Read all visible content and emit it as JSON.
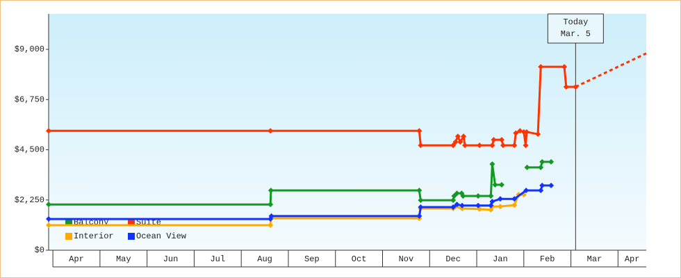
{
  "chart_data": {
    "type": "line",
    "step_markers": true,
    "legend": "lower left",
    "xlim": [
      -0.09,
      12.6
    ],
    "xticks": [
      {
        "value": 0,
        "label": "Apr"
      },
      {
        "value": 1,
        "label": "May"
      },
      {
        "value": 2,
        "label": "Jun"
      },
      {
        "value": 3,
        "label": "Jul"
      },
      {
        "value": 4,
        "label": "Aug"
      },
      {
        "value": 5,
        "label": "Sep"
      },
      {
        "value": 6,
        "label": "Oct"
      },
      {
        "value": 7,
        "label": "Nov"
      },
      {
        "value": 8,
        "label": "Dec"
      },
      {
        "value": 9,
        "label": "Jan"
      },
      {
        "value": 10,
        "label": "Feb"
      },
      {
        "value": 11,
        "label": "Mar"
      },
      {
        "value": 12,
        "label": "Apr"
      }
    ],
    "ylim": [
      0,
      10590
    ],
    "yticks": [
      {
        "value": 0,
        "label": "$0"
      },
      {
        "value": 2250,
        "label": "$2,250"
      },
      {
        "value": 4500,
        "label": "$4,500"
      },
      {
        "value": 6750,
        "label": "$6,750"
      },
      {
        "value": 9000,
        "label": "$9,000"
      }
    ],
    "annotation": {
      "lines": [
        "Today",
        "Mar. 5"
      ],
      "x": 11.1
    },
    "series": [
      {
        "name": "Balcony",
        "color": "#119922",
        "x": [
          -0.09,
          4.62,
          4.63,
          7.78,
          7.81,
          8.5,
          8.52,
          8.58,
          8.68,
          8.71,
          9.03,
          9.3,
          9.33,
          9.39,
          9.53,
          null,
          10.07,
          10.36,
          10.39,
          10.58
        ],
        "values": [
          2050,
          2050,
          2680,
          2680,
          2240,
          2240,
          2430,
          2550,
          2550,
          2430,
          2430,
          2430,
          3860,
          2930,
          2930,
          null,
          3710,
          3710,
          3960,
          3960
        ]
      },
      {
        "name": "Suite",
        "color": "#ff3300",
        "x": [
          -0.09,
          4.62,
          7.78,
          7.81,
          8.5,
          8.55,
          8.6,
          8.65,
          8.72,
          8.75,
          9.06,
          9.33,
          9.36,
          9.53,
          9.56,
          9.8,
          9.83,
          9.92,
          10.0,
          10.04,
          10.06,
          10.3,
          10.36,
          10.86,
          10.9,
          11.1
        ],
        "values": [
          5350,
          5350,
          5350,
          4700,
          4700,
          4850,
          5100,
          4850,
          5100,
          4700,
          4700,
          4700,
          4950,
          4950,
          4700,
          4700,
          5250,
          5350,
          5300,
          4700,
          5300,
          5200,
          8220,
          8220,
          7320,
          7320
        ],
        "forecast_x": [
          11.1,
          12.6
        ],
        "forecast_values": [
          7320,
          8820
        ]
      },
      {
        "name": "Interior",
        "color": "#ffaa00",
        "x": [
          -0.09,
          4.62,
          4.63,
          7.78,
          7.81,
          8.5,
          8.55,
          8.69,
          9.06,
          9.3,
          9.33,
          9.5,
          9.8,
          9.89,
          10.0
        ],
        "values": [
          1120,
          1120,
          1430,
          1430,
          1870,
          1870,
          1960,
          1870,
          1840,
          1810,
          1960,
          1960,
          2020,
          2490,
          2490
        ]
      },
      {
        "name": "Ocean View",
        "color": "#1133ff",
        "x": [
          -0.09,
          4.62,
          4.64,
          7.78,
          7.81,
          8.5,
          8.58,
          8.69,
          9.03,
          9.3,
          9.33,
          9.5,
          9.8,
          10.05,
          10.36,
          10.39,
          10.58
        ],
        "values": [
          1400,
          1400,
          1530,
          1530,
          1930,
          1930,
          2050,
          2000,
          2000,
          2000,
          2180,
          2300,
          2300,
          2680,
          2680,
          2900,
          2900
        ]
      }
    ]
  }
}
